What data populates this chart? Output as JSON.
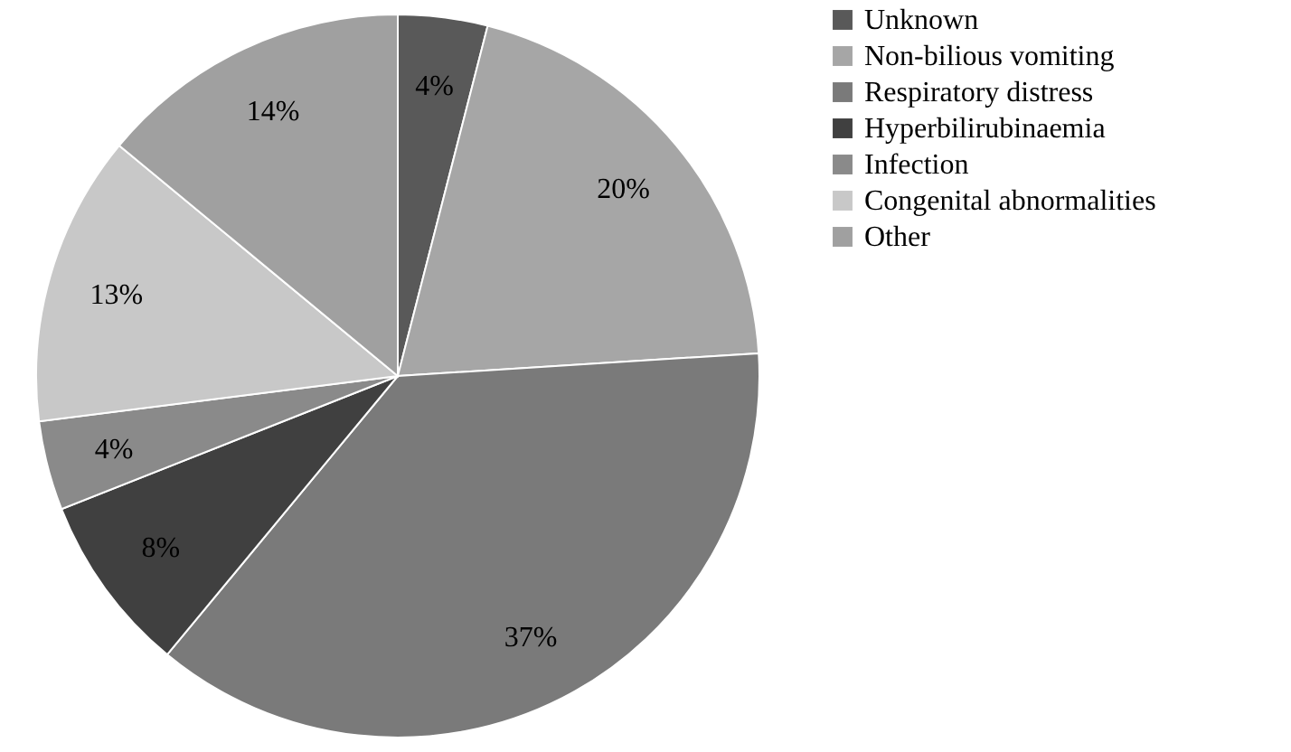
{
  "chart_data": {
    "type": "pie",
    "categories": [
      "Unknown",
      "Non-bilious vomiting",
      "Respiratory distress",
      "Hyperbilirubinaemia",
      "Infection",
      "Congenital abnormalities",
      "Other"
    ],
    "values": [
      4,
      20,
      37,
      8,
      4,
      13,
      14
    ],
    "value_labels": [
      "4%",
      "20%",
      "37%",
      "8%",
      "4%",
      "13%",
      "14%"
    ],
    "colors": [
      "#595959",
      "#a6a6a6",
      "#7a7a7a",
      "#404040",
      "#8a8a8a",
      "#c8c8c8",
      "#a0a0a0"
    ],
    "legend": "right"
  }
}
